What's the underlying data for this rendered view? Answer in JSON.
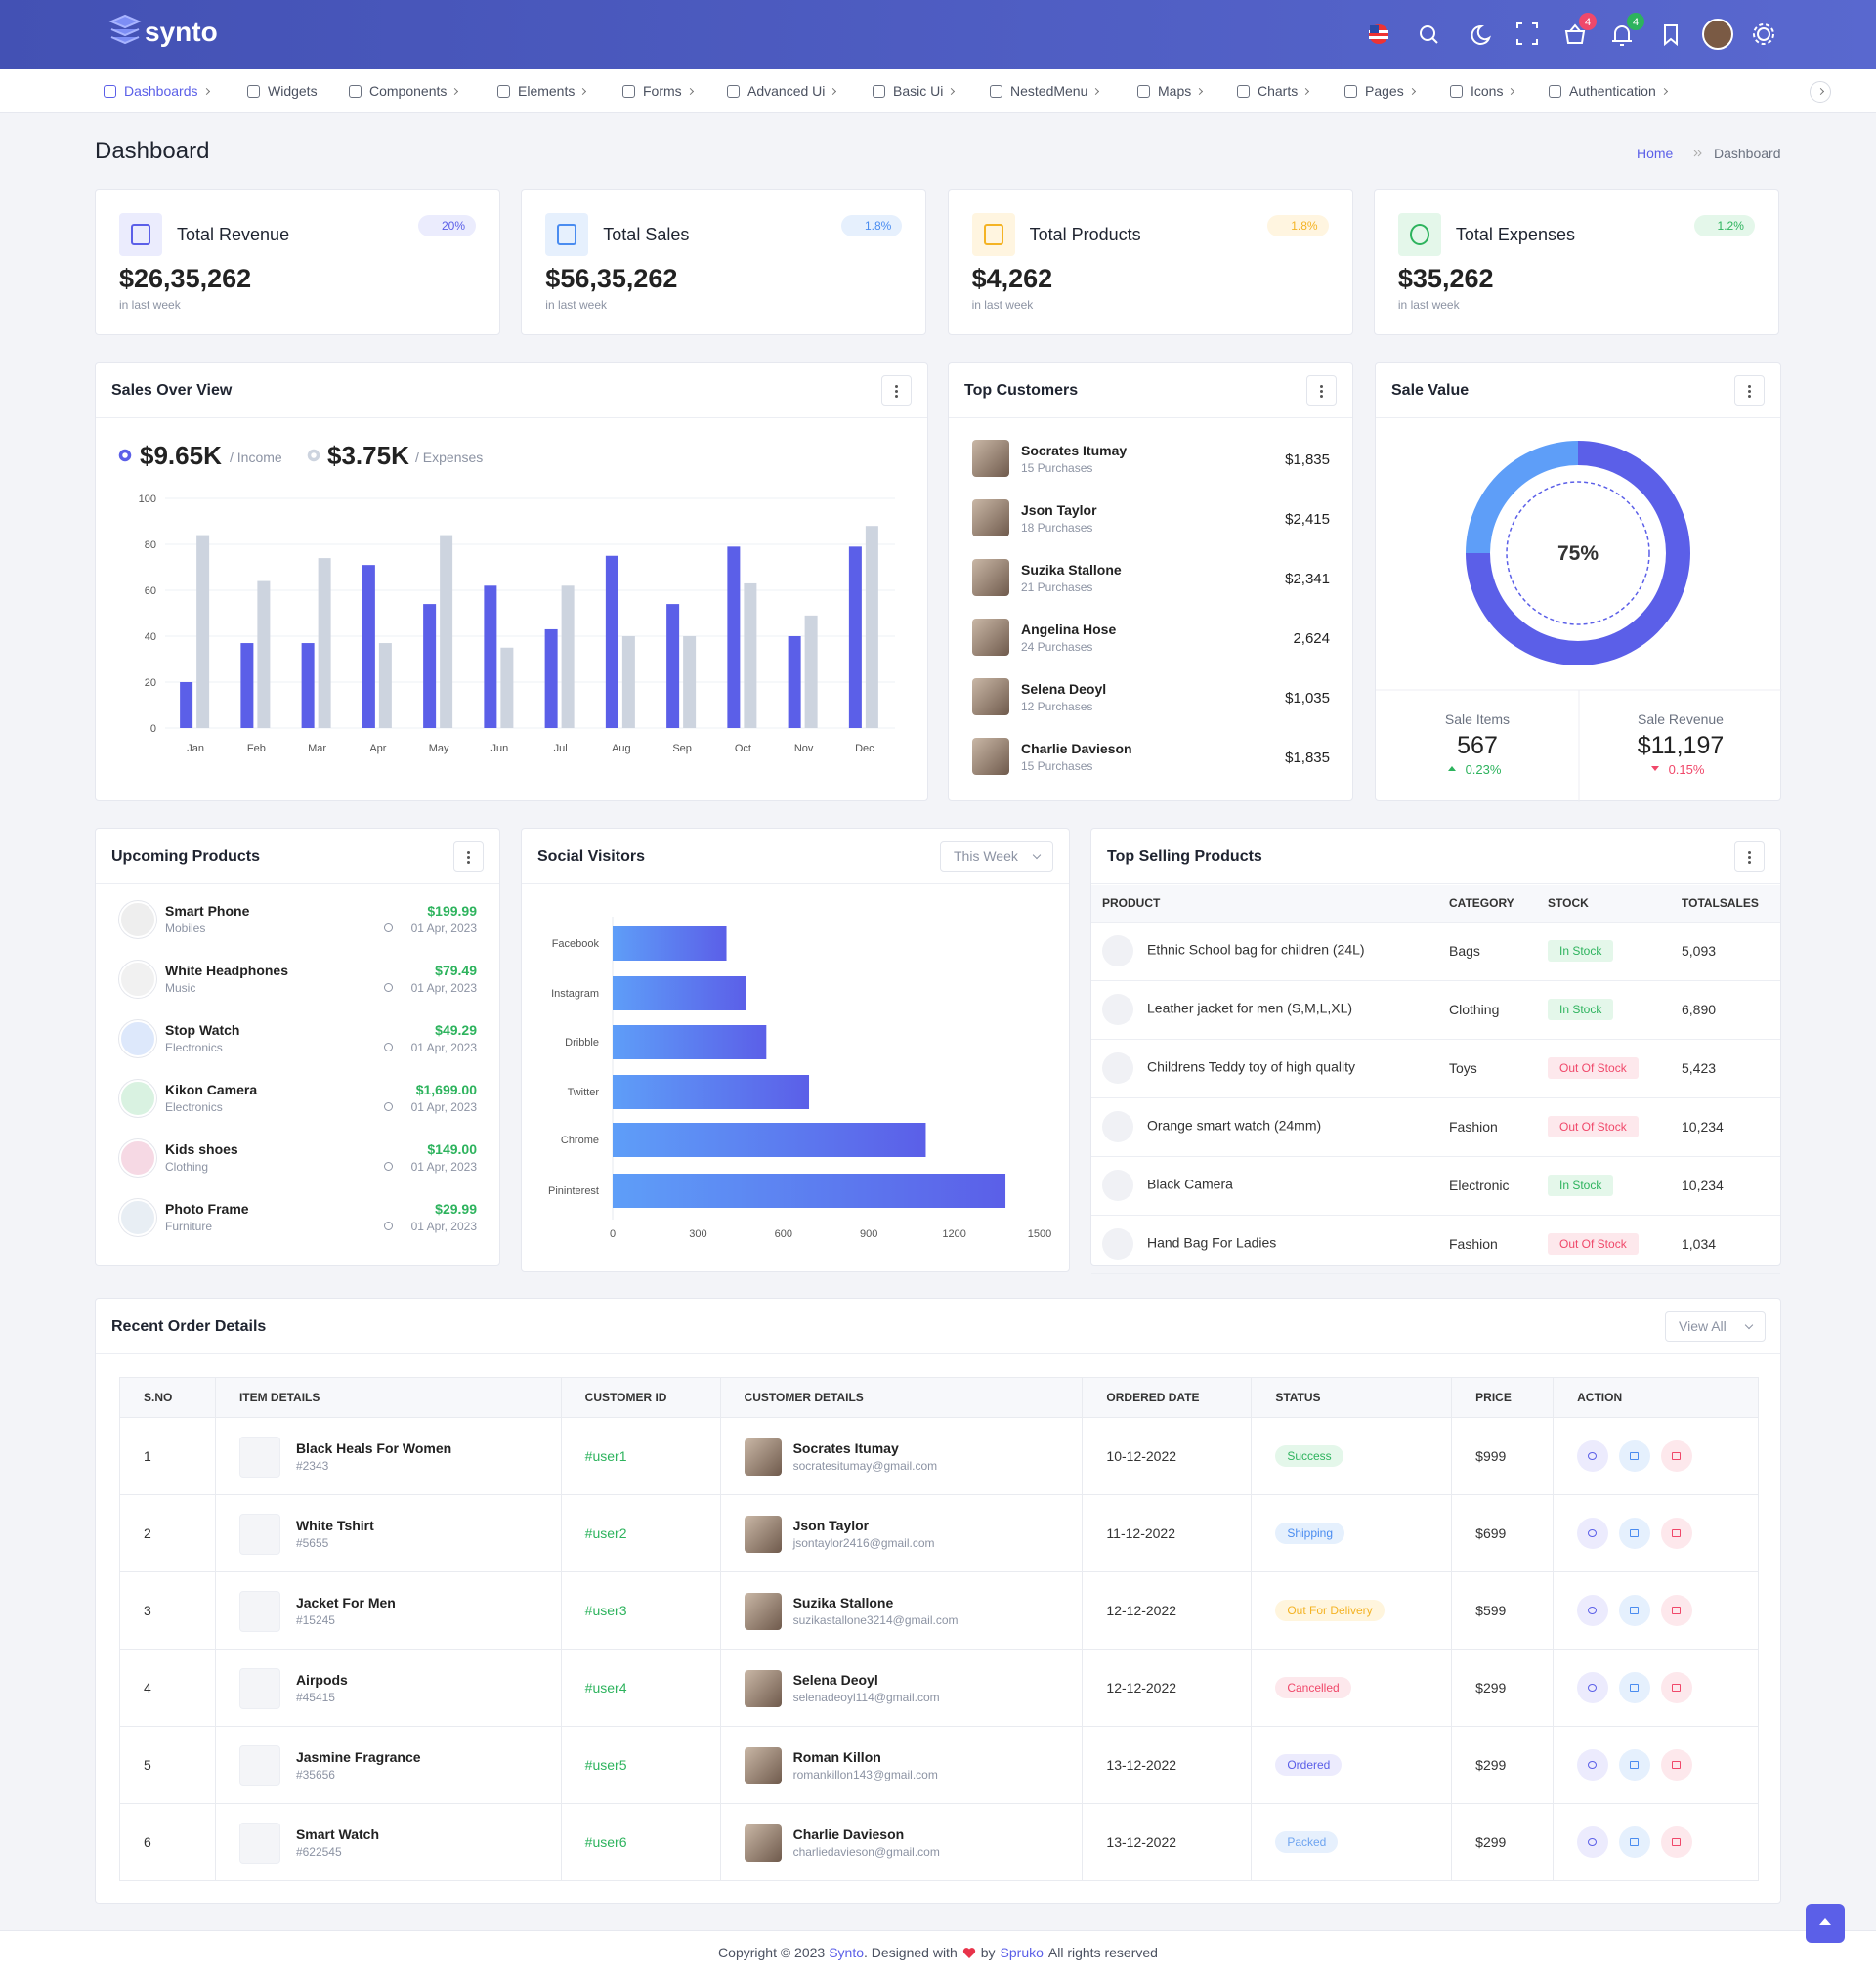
{
  "header": {
    "brand": "synto",
    "cart_count": "4",
    "notification_count": "4"
  },
  "nav": [
    "Dashboards",
    "Widgets",
    "Components",
    "Elements",
    "Forms",
    "Advanced Ui",
    "Basic Ui",
    "NestedMenu",
    "Maps",
    "Charts",
    "Pages",
    "Icons",
    "Authentication"
  ],
  "page_title": "Dashboard",
  "breadcrumb": [
    "Home",
    "Dashboard"
  ],
  "stats": [
    {
      "title": "Total Revenue",
      "change": "20%",
      "value": "$26,35,262",
      "note": "in last week"
    },
    {
      "title": "Total Sales",
      "change": "1.8%",
      "value": "$56,35,262",
      "note": "in last week"
    },
    {
      "title": "Total Products",
      "change": "1.8%",
      "value": "$4,262",
      "note": "in last week"
    },
    {
      "title": "Total Expenses",
      "change": "1.2%",
      "value": "$35,262",
      "note": "in last week"
    }
  ],
  "chart_data": [
    {
      "type": "bar",
      "title": "Sales Over View",
      "categories": [
        "Jan",
        "Feb",
        "Mar",
        "Apr",
        "May",
        "Jun",
        "Jul",
        "Aug",
        "Sep",
        "Oct",
        "Nov",
        "Dec"
      ],
      "series": [
        {
          "name": "/ Income",
          "total": "$9.65K",
          "color": "#5b5fe8",
          "values": [
            20,
            37,
            37,
            71,
            54,
            62,
            43,
            75,
            54,
            79,
            40,
            79
          ]
        },
        {
          "name": "/ Expenses",
          "total": "$3.75K",
          "color": "#cdd4df",
          "values": [
            84,
            64,
            74,
            37,
            84,
            35,
            62,
            40,
            40,
            63,
            49,
            88
          ]
        }
      ],
      "ylim": [
        0,
        100
      ],
      "yticks": [
        0,
        20,
        40,
        60,
        80,
        100
      ],
      "grid": true
    },
    {
      "type": "bar",
      "horizontal": true,
      "title": "Social Visitors",
      "filter": "This Week",
      "categories": [
        "Facebook",
        "Instagram",
        "Dribble",
        "Twitter",
        "Chrome",
        "Pininterest"
      ],
      "values": [
        400,
        470,
        540,
        690,
        1100,
        1380
      ],
      "gradient": [
        "#5e9ef8",
        "#5b5fe8"
      ],
      "xlim": [
        0,
        1500
      ],
      "xticks": [
        0,
        300,
        600,
        900,
        1200,
        1500
      ],
      "grid": false
    },
    {
      "type": "pie",
      "title": "Sale Value",
      "values": [
        75,
        25
      ],
      "value_labels": [
        "75%",
        null
      ],
      "colors": [
        "#5b5fe8",
        "#5e9ef8"
      ]
    }
  ],
  "sale_value_stats": [
    {
      "label": "Sale Items",
      "value": "567",
      "change": "0.23%"
    },
    {
      "label": "Sale Revenue",
      "value": "$11,197",
      "change": "0.15%"
    }
  ],
  "top_customers": {
    "title": "Top Customers",
    "items": [
      {
        "name": "Socrates Itumay",
        "purchases": "15 Purchases",
        "amount": "$1,835"
      },
      {
        "name": "Json Taylor",
        "purchases": "18 Purchases",
        "amount": "$2,415"
      },
      {
        "name": "Suzika Stallone",
        "purchases": "21 Purchases",
        "amount": "$2,341"
      },
      {
        "name": "Angelina Hose",
        "purchases": "24 Purchases",
        "amount": "2,624"
      },
      {
        "name": "Selena Deoyl",
        "purchases": "12 Purchases",
        "amount": "$1,035"
      },
      {
        "name": "Charlie Davieson",
        "purchases": "15 Purchases",
        "amount": "$1,835"
      }
    ]
  },
  "upcoming_products": {
    "title": "Upcoming Products",
    "items": [
      {
        "name": "Smart Phone",
        "category": "Mobiles",
        "price": "$199.99",
        "date": "01 Apr, 2023"
      },
      {
        "name": "White Headphones",
        "category": "Music",
        "price": "$79.49",
        "date": "01 Apr, 2023"
      },
      {
        "name": "Stop Watch",
        "category": "Electronics",
        "price": "$49.29",
        "date": "01 Apr, 2023"
      },
      {
        "name": "Kikon Camera",
        "category": "Electronics",
        "price": "$1,699.00",
        "date": "01 Apr, 2023"
      },
      {
        "name": "Kids shoes",
        "category": "Clothing",
        "price": "$149.00",
        "date": "01 Apr, 2023"
      },
      {
        "name": "Photo Frame",
        "category": "Furniture",
        "price": "$29.99",
        "date": "01 Apr, 2023"
      }
    ]
  },
  "top_selling": {
    "title": "Top Selling Products",
    "headers": [
      "PRODUCT",
      "CATEGORY",
      "STOCK",
      "TOTALSALES"
    ],
    "rows": [
      [
        "Ethnic School bag for children (24L)",
        "Bags",
        "In Stock",
        "5,093"
      ],
      [
        "Leather jacket for men (S,M,L,XL)",
        "Clothing",
        "In Stock",
        "6,890"
      ],
      [
        "Childrens Teddy toy of high quality",
        "Toys",
        "Out Of Stock",
        "5,423"
      ],
      [
        "Orange smart watch (24mm)",
        "Fashion",
        "Out Of Stock",
        "10,234"
      ],
      [
        "Black Camera",
        "Electronic",
        "In Stock",
        "10,234"
      ],
      [
        "Hand Bag For Ladies",
        "Fashion",
        "Out Of Stock",
        "1,034"
      ]
    ]
  },
  "recent_orders": {
    "title": "Recent Order Details",
    "button": "View All",
    "headers": [
      "S.NO",
      "ITEM DETAILS",
      "CUSTOMER ID",
      "CUSTOMER DETAILS",
      "ORDERED DATE",
      "STATUS",
      "PRICE",
      "ACTION"
    ],
    "rows": [
      {
        "no": "1",
        "item": "Black Heals For Women",
        "item_id": "#2343",
        "customer_id": "#user1",
        "customer": "Socrates Itumay",
        "email": "socratesitumay@gmail.com",
        "date": "10-12-2022",
        "status": "Success",
        "price": "$999"
      },
      {
        "no": "2",
        "item": "White Tshirt",
        "item_id": "#5655",
        "customer_id": "#user2",
        "customer": "Json Taylor",
        "email": "jsontaylor2416@gmail.com",
        "date": "11-12-2022",
        "status": "Shipping",
        "price": "$699"
      },
      {
        "no": "3",
        "item": "Jacket For Men",
        "item_id": "#15245",
        "customer_id": "#user3",
        "customer": "Suzika Stallone",
        "email": "suzikastallone3214@gmail.com",
        "date": "12-12-2022",
        "status": "Out For Delivery",
        "price": "$599"
      },
      {
        "no": "4",
        "item": "Airpods",
        "item_id": "#45415",
        "customer_id": "#user4",
        "customer": "Selena Deoyl",
        "email": "selenadeoyl114@gmail.com",
        "date": "12-12-2022",
        "status": "Cancelled",
        "price": "$299"
      },
      {
        "no": "5",
        "item": "Jasmine Fragrance",
        "item_id": "#35656",
        "customer_id": "#user5",
        "customer": "Roman Killon",
        "email": "romankillon143@gmail.com",
        "date": "13-12-2022",
        "status": "Ordered",
        "price": "$299"
      },
      {
        "no": "6",
        "item": "Smart Watch",
        "item_id": "#622545",
        "customer_id": "#user6",
        "customer": "Charlie Davieson",
        "email": "charliedavieson@gmail.com",
        "date": "13-12-2022",
        "status": "Packed",
        "price": "$299"
      }
    ]
  },
  "footer": {
    "copyright": "Copyright © 2023",
    "brand": "Synto",
    "designed": ". Designed with",
    "by": "by",
    "company": "Spruko",
    "rights": "All rights reserved"
  }
}
